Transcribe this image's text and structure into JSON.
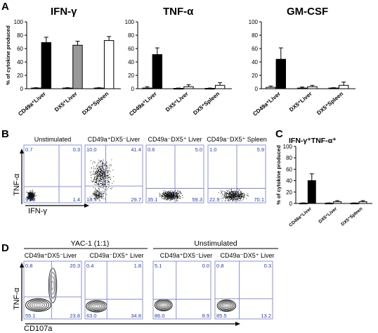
{
  "panels": {
    "a": "A",
    "b": "B",
    "c": "C",
    "d": "D"
  },
  "chart_data": [
    {
      "type": "bar",
      "title": "IFN-γ",
      "ylabel": "% of cytokine produced",
      "ylim": [
        0,
        100
      ],
      "yticks": [
        "0",
        "20",
        "40",
        "60",
        "80",
        "100"
      ],
      "categories": [
        "CD49a⁺Liver",
        "DX5⁺Liver",
        "DX5⁺Spleen"
      ],
      "series": [
        {
          "values": [
            1,
            1,
            1
          ],
          "errors": [
            0.5,
            0.5,
            0.5
          ],
          "color": "#ffffff"
        },
        {
          "values": [
            69,
            65,
            72
          ],
          "errors": [
            8,
            6,
            6
          ],
          "colors": [
            "#000000",
            "#999999",
            "#ffffff"
          ]
        }
      ]
    },
    {
      "type": "bar",
      "title": "TNF-α",
      "ylim": [
        0,
        100
      ],
      "yticks": [
        "0",
        "20",
        "40",
        "60",
        "80",
        "100"
      ],
      "categories": [
        "CD49a⁺Liver",
        "DX5⁺Liver",
        "DX5⁺Spleen"
      ],
      "series": [
        {
          "values": [
            1,
            0.5,
            0.5
          ],
          "errors": [
            2,
            0.5,
            0.5
          ],
          "color": "#ffffff"
        },
        {
          "values": [
            51,
            3,
            5
          ],
          "errors": [
            10,
            3,
            4
          ],
          "colors": [
            "#000000",
            "#ffffff",
            "#ffffff"
          ]
        }
      ]
    },
    {
      "type": "bar",
      "title": "GM-CSF",
      "ylim": [
        0,
        100
      ],
      "yticks": [
        "0",
        "20",
        "40",
        "60",
        "80",
        "100"
      ],
      "categories": [
        "CD49a⁺Liver",
        "DX5⁺Liver",
        "DX5⁺Spleen"
      ],
      "series": [
        {
          "values": [
            2,
            1,
            1
          ],
          "errors": [
            2,
            1.5,
            0.5
          ],
          "color": "#ffffff"
        },
        {
          "values": [
            44,
            3,
            5
          ],
          "errors": [
            17,
            2,
            5
          ],
          "colors": [
            "#000000",
            "#ffffff",
            "#ffffff"
          ]
        }
      ]
    },
    {
      "type": "bar",
      "title": "IFN-γ⁺TNF-α⁺",
      "ylabel": "% of cytokine produced",
      "ylim": [
        0,
        100
      ],
      "yticks": [
        "0",
        "20",
        "40",
        "60",
        "80",
        "100"
      ],
      "categories": [
        "CD49a⁺Liver",
        "DX5⁺Liver",
        "DX5⁺Spleen"
      ],
      "series": [
        {
          "values": [
            0.5,
            0.5,
            0.5
          ],
          "errors": [
            0.5,
            0.5,
            0.5
          ],
          "color": "#ffffff"
        },
        {
          "values": [
            40,
            3,
            3
          ],
          "errors": [
            12,
            2,
            2
          ],
          "colors": [
            "#000000",
            "#ffffff",
            "#ffffff"
          ]
        }
      ]
    }
  ],
  "flowB": {
    "ylabel": "TNF-α",
    "xlabel": "IFN-γ",
    "plots": [
      {
        "title": "Unstimulated",
        "q": [
          "0.7",
          "0.3",
          "97.6",
          "1.4"
        ]
      },
      {
        "title": "CD49a⁺DX5⁻Liver",
        "q": [
          "10.0",
          "41.4",
          "18.7",
          "29.7"
        ]
      },
      {
        "title": "CD49a⁻DX5⁺ Liver",
        "q": [
          "0.6",
          "5.0",
          "35.1",
          "59.3"
        ]
      },
      {
        "title": "CD49a⁻DX5⁺ Spleen",
        "q": [
          "1.0",
          "5.9",
          "22.9",
          "70.1"
        ]
      }
    ]
  },
  "flowD": {
    "ylabel": "TNF-α",
    "xlabel": "CD107a",
    "groups": [
      "YAC-1 (1:1)",
      "Unstimulated"
    ],
    "plots": [
      {
        "title": "CD49a⁺DX5⁻Liver",
        "q": [
          "0.8",
          "20.3",
          "55.1",
          "23.8"
        ]
      },
      {
        "title": "CD49a⁻DX5⁺ Liver",
        "q": [
          "0.4",
          "1.8",
          "63.0",
          "34.8"
        ]
      },
      {
        "title": "CD49a⁺DX5⁻Liver",
        "q": [
          "5.1",
          "0.0",
          "86.0",
          "8.9"
        ]
      },
      {
        "title": "CD49a⁻DX5⁺ Liver",
        "q": [
          "0.8",
          "0.3",
          "85.5",
          "13.2"
        ]
      }
    ]
  }
}
